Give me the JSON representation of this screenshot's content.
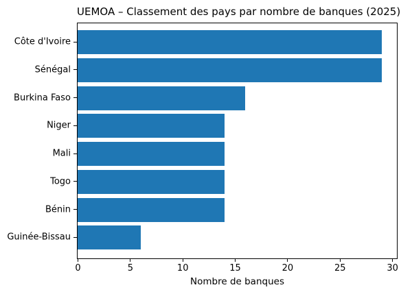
{
  "chart_data": {
    "type": "bar",
    "orientation": "horizontal",
    "title": "UEMOA – Classement des pays par nombre de banques (2025)",
    "categories": [
      "Côte d'Ivoire",
      "Sénégal",
      "Burkina Faso",
      "Niger",
      "Mali",
      "Togo",
      "Bénin",
      "Guinée-Bissau"
    ],
    "values": [
      29,
      29,
      16,
      14,
      14,
      14,
      14,
      6
    ],
    "xlabel": "Nombre de banques",
    "ylabel": "",
    "xlim": [
      0,
      30.45
    ],
    "xticks": [
      0,
      5,
      10,
      15,
      20,
      25,
      30
    ],
    "bar_color": "#1f77b4",
    "grid": false,
    "legend": null
  }
}
